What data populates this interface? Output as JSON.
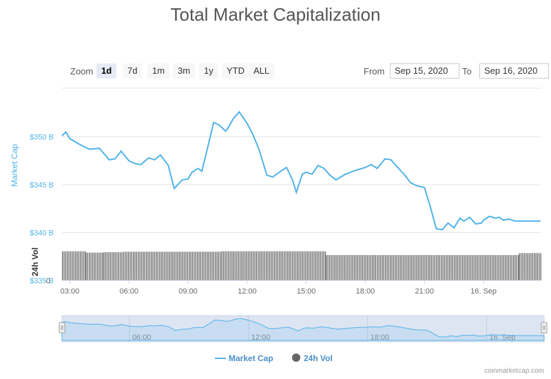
{
  "chart_data": {
    "type": "line",
    "title": "Total Market Capitalization",
    "zoom": {
      "label": "Zoom",
      "buttons": [
        "1d",
        "7d",
        "1m",
        "3m",
        "1y",
        "YTD",
        "ALL"
      ],
      "active": "1d"
    },
    "range": {
      "from_label": "From",
      "from_value": "Sep 15, 2020",
      "to_label": "To",
      "to_value": "Sep 16, 2020"
    },
    "x_ticks": [
      "03:00",
      "06:00",
      "09:00",
      "12:00",
      "15:00",
      "18:00",
      "21:00",
      "16. Sep"
    ],
    "navigator_ticks": [
      "06:00",
      "12:00",
      "18:00",
      "16. Sep"
    ],
    "market_cap": {
      "name": "Market Cap",
      "axis_label": "Market Cap",
      "y_ticks": [
        "$350 B",
        "$345 B",
        "$340 B",
        "$335 B"
      ],
      "ylim": [
        335,
        355
      ],
      "color": "#4fb3e8",
      "x_hours": [
        2.6,
        2.8,
        3.0,
        3.5,
        4.0,
        4.5,
        5.0,
        5.3,
        5.6,
        6.0,
        6.3,
        6.6,
        7.0,
        7.3,
        7.6,
        8.0,
        8.3,
        8.7,
        9.0,
        9.2,
        9.5,
        9.7,
        10.0,
        10.3,
        10.6,
        10.9,
        11.0,
        11.3,
        11.6,
        12.0,
        12.3,
        12.6,
        13.0,
        13.3,
        13.7,
        14.0,
        14.3,
        14.5,
        14.8,
        15.0,
        15.3,
        15.6,
        15.9,
        16.2,
        16.5,
        17.0,
        17.5,
        18.0,
        18.3,
        18.6,
        19.0,
        19.3,
        19.6,
        20.0,
        20.3,
        20.6,
        21.0,
        21.3,
        21.6,
        21.9,
        22.2,
        22.5,
        22.8,
        23.0,
        23.3,
        23.6,
        23.9,
        24.0,
        24.3,
        24.6,
        24.8,
        25.0,
        25.3,
        25.6,
        25.9,
        26.1,
        26.3,
        26.6,
        26.9
      ],
      "values": [
        350.1,
        350.5,
        349.8,
        349.2,
        348.7,
        348.8,
        347.6,
        347.7,
        348.5,
        347.5,
        347.2,
        347.1,
        347.8,
        347.6,
        348.1,
        347.0,
        344.6,
        345.5,
        345.6,
        346.3,
        346.7,
        346.4,
        348.9,
        351.5,
        351.2,
        350.6,
        350.8,
        351.9,
        352.6,
        351.4,
        350.2,
        348.7,
        346.0,
        345.8,
        346.4,
        346.8,
        345.5,
        344.2,
        346.1,
        346.3,
        346.1,
        347.0,
        346.7,
        346.0,
        345.5,
        346.1,
        346.5,
        346.8,
        347.1,
        346.7,
        347.7,
        347.6,
        346.9,
        346.0,
        345.2,
        344.9,
        344.7,
        342.7,
        340.4,
        340.3,
        341.0,
        340.5,
        341.5,
        341.2,
        341.6,
        340.9,
        341.0,
        341.3,
        341.7,
        341.5,
        341.6,
        341.3,
        341.4,
        341.2,
        341.2,
        341.2,
        341.2,
        341.2,
        341.2
      ]
    },
    "volume": {
      "name": "24h Vol",
      "axis_label": "24h Vol",
      "y_ticks": [
        "0"
      ],
      "color": "#666666",
      "segments": [
        {
          "from": 2.6,
          "to": 3.8,
          "value": 0.62
        },
        {
          "from": 3.8,
          "to": 4.7,
          "value": 0.59
        },
        {
          "from": 4.7,
          "to": 5.7,
          "value": 0.6
        },
        {
          "from": 5.7,
          "to": 10.7,
          "value": 0.61
        },
        {
          "from": 10.7,
          "to": 16.0,
          "value": 0.62
        },
        {
          "from": 16.0,
          "to": 25.8,
          "value": 0.54
        },
        {
          "from": 25.8,
          "to": 26.9,
          "value": 0.58
        }
      ]
    },
    "legend": {
      "placement": "bottom-center",
      "items": [
        {
          "label": "Market Cap",
          "color": "#4fb3e8",
          "symbol": "line"
        },
        {
          "label": "24h Vol",
          "color": "#666666",
          "symbol": "circle"
        }
      ]
    },
    "credit": "coinmarketcap.com"
  }
}
